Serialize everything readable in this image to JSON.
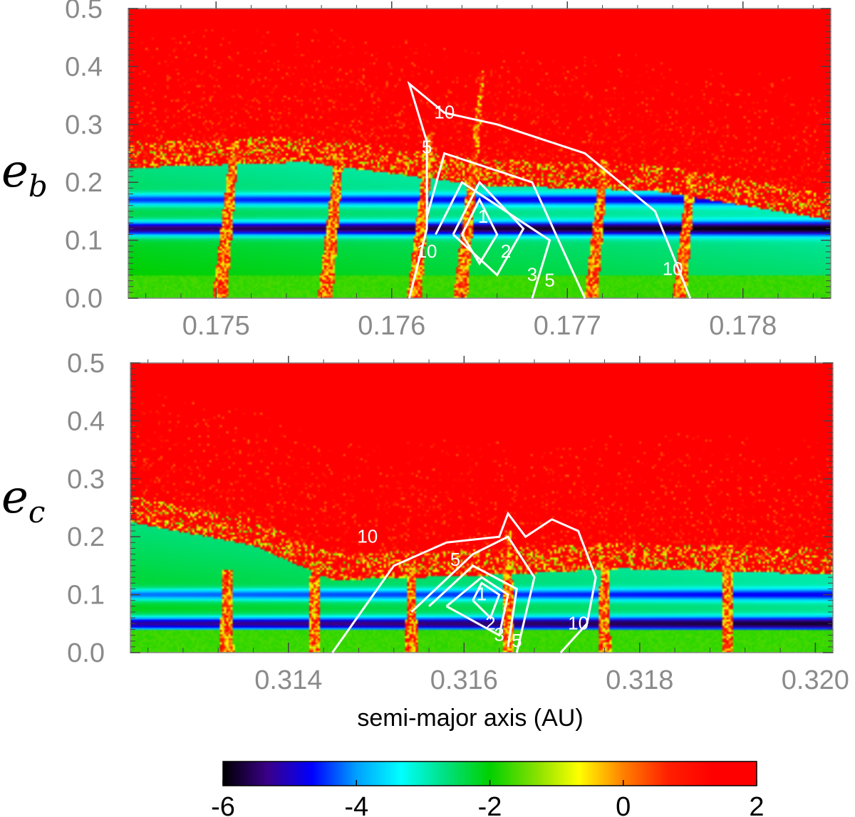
{
  "chart_data": [
    {
      "type": "heatmap",
      "ylabel_main": "e",
      "ylabel_sub": "b",
      "xlabel": "",
      "xlim": [
        0.1745,
        0.1785
      ],
      "ylim": [
        0.0,
        0.5
      ],
      "xticks": [
        0.175,
        0.176,
        0.177,
        0.178
      ],
      "xtick_labels": [
        "0.175",
        "0.176",
        "0.177",
        "0.178"
      ],
      "yticks": [
        0.0,
        0.1,
        0.2,
        0.3,
        0.4,
        0.5
      ],
      "ytick_labels": [
        "0.0",
        "0.1",
        "0.2",
        "0.3",
        "0.4",
        "0.5"
      ],
      "stable_boundary": [
        [
          0.1745,
          0.24
        ],
        [
          0.1755,
          0.25
        ],
        [
          0.1765,
          0.21
        ],
        [
          0.1775,
          0.2
        ],
        [
          0.1785,
          0.15
        ]
      ],
      "resonances": [
        {
          "x": 0.1751,
          "depth": 0.22
        },
        {
          "x": 0.1757,
          "depth": 0.2
        },
        {
          "x": 0.1762,
          "depth": 0.24
        },
        {
          "x": 0.17646,
          "depth": 0.35
        },
        {
          "x": 0.1772,
          "depth": 0.2
        },
        {
          "x": 0.1777,
          "depth": 0.18
        }
      ],
      "contours": [
        {
          "label": "1",
          "points": [
            [
              0.1764,
              0.11
            ],
            [
              0.1765,
              0.17
            ],
            [
              0.1766,
              0.11
            ],
            [
              0.1765,
              0.06
            ],
            [
              0.1764,
              0.11
            ]
          ],
          "label_at": [
            0.17652,
            0.13
          ]
        },
        {
          "label": "2",
          "points": [
            [
              0.17635,
              0.11
            ],
            [
              0.1765,
              0.2
            ],
            [
              0.17675,
              0.12
            ],
            [
              0.1766,
              0.04
            ],
            [
              0.17635,
              0.11
            ]
          ],
          "label_at": [
            0.17665,
            0.07
          ]
        },
        {
          "label": "3",
          "points": [
            [
              0.17625,
              0.11
            ],
            [
              0.1764,
              0.2
            ],
            [
              0.1769,
              0.1
            ],
            [
              0.1768,
              0.0
            ]
          ],
          "label_at": [
            0.1768,
            0.03
          ]
        },
        {
          "label": "5",
          "points": [
            [
              0.1762,
              0.14
            ],
            [
              0.1763,
              0.25
            ],
            [
              0.1768,
              0.2
            ],
            [
              0.1771,
              0.0
            ]
          ],
          "label_at": [
            0.1769,
            0.02
          ]
        },
        {
          "label": "10",
          "points": [
            [
              0.1761,
              0.0
            ],
            [
              0.1762,
              0.12
            ],
            [
              0.1762,
              0.27
            ],
            [
              0.1761,
              0.37
            ],
            [
              0.1763,
              0.32
            ],
            [
              0.1766,
              0.3
            ],
            [
              0.1771,
              0.25
            ],
            [
              0.1775,
              0.15
            ],
            [
              0.1777,
              0.0
            ]
          ],
          "label_at": [
            0.1776,
            0.04
          ]
        },
        {
          "label": "10",
          "points": [],
          "label_at": [
            0.1763,
            0.31
          ]
        },
        {
          "label": "5",
          "points": [],
          "label_at": [
            0.1762,
            0.25
          ]
        },
        {
          "label": "10",
          "points": [],
          "label_at": [
            0.1762,
            0.07
          ]
        }
      ]
    },
    {
      "type": "heatmap",
      "ylabel_main": "e",
      "ylabel_sub": "c",
      "xlabel": "semi-major axis (AU)",
      "xlim": [
        0.3122,
        0.3202
      ],
      "ylim": [
        0.0,
        0.5
      ],
      "xticks": [
        0.314,
        0.316,
        0.318,
        0.32
      ],
      "xtick_labels": [
        "0.314",
        "0.316",
        "0.318",
        "0.320"
      ],
      "yticks": [
        0.0,
        0.1,
        0.2,
        0.3,
        0.4,
        0.5
      ],
      "ytick_labels": [
        "0.0",
        "0.1",
        "0.2",
        "0.3",
        "0.4",
        "0.5"
      ],
      "stable_boundary": [
        [
          0.3122,
          0.24
        ],
        [
          0.3136,
          0.2
        ],
        [
          0.3145,
          0.14
        ],
        [
          0.3165,
          0.15
        ],
        [
          0.3178,
          0.16
        ],
        [
          0.3202,
          0.15
        ]
      ],
      "resonances": [
        {
          "x": 0.3133,
          "depth": 0.1
        },
        {
          "x": 0.3143,
          "depth": 0.12
        },
        {
          "x": 0.3154,
          "depth": 0.12
        },
        {
          "x": 0.3165,
          "depth": 0.18
        },
        {
          "x": 0.3176,
          "depth": 0.12
        },
        {
          "x": 0.319,
          "depth": 0.14
        }
      ],
      "contours": [
        {
          "label": "1",
          "points": [
            [
              0.3161,
              0.09
            ],
            [
              0.3162,
              0.12
            ],
            [
              0.3164,
              0.1
            ],
            [
              0.3163,
              0.06
            ],
            [
              0.3161,
              0.09
            ]
          ],
          "label_at": [
            0.3162,
            0.09
          ]
        },
        {
          "label": "2",
          "points": [
            [
              0.3158,
              0.08
            ],
            [
              0.3162,
              0.13
            ],
            [
              0.3165,
              0.1
            ],
            [
              0.3164,
              0.03
            ],
            [
              0.3158,
              0.08
            ]
          ],
          "label_at": [
            0.3163,
            0.04
          ]
        },
        {
          "label": "3",
          "points": [
            [
              0.3156,
              0.08
            ],
            [
              0.3161,
              0.15
            ],
            [
              0.3166,
              0.11
            ],
            [
              0.3165,
              0.01
            ]
          ],
          "label_at": [
            0.3164,
            0.02
          ]
        },
        {
          "label": "5",
          "points": [
            [
              0.3154,
              0.07
            ],
            [
              0.3161,
              0.17
            ],
            [
              0.3165,
              0.2
            ],
            [
              0.3168,
              0.13
            ],
            [
              0.3166,
              0.0
            ]
          ],
          "label_at": [
            0.3166,
            0.01
          ]
        },
        {
          "label": "10",
          "points": [
            [
              0.3145,
              0.0
            ],
            [
              0.3152,
              0.15
            ],
            [
              0.3158,
              0.19
            ],
            [
              0.3164,
              0.2
            ],
            [
              0.3165,
              0.24
            ],
            [
              0.3167,
              0.2
            ],
            [
              0.317,
              0.23
            ],
            [
              0.3173,
              0.21
            ],
            [
              0.3175,
              0.13
            ],
            [
              0.3174,
              0.05
            ],
            [
              0.3171,
              0.0
            ]
          ],
          "label_at": [
            0.3173,
            0.04
          ]
        },
        {
          "label": "10",
          "points": [],
          "label_at": [
            0.3149,
            0.19
          ]
        },
        {
          "label": "5",
          "points": [],
          "label_at": [
            0.3159,
            0.15
          ]
        }
      ]
    }
  ],
  "colorbar": {
    "type": "colorbar",
    "range": [
      -6,
      2
    ],
    "ticks": [
      -6,
      -4,
      -2,
      0,
      2
    ],
    "tick_labels": [
      "-6",
      "-4",
      "-2",
      "0",
      "2"
    ],
    "colors": [
      "#000000",
      "#3a0088",
      "#0000ff",
      "#00a0ff",
      "#00ffff",
      "#00e080",
      "#00d000",
      "#80e000",
      "#ffff00",
      "#ff8000",
      "#ff2000",
      "#ff0000",
      "#ff0000"
    ]
  }
}
